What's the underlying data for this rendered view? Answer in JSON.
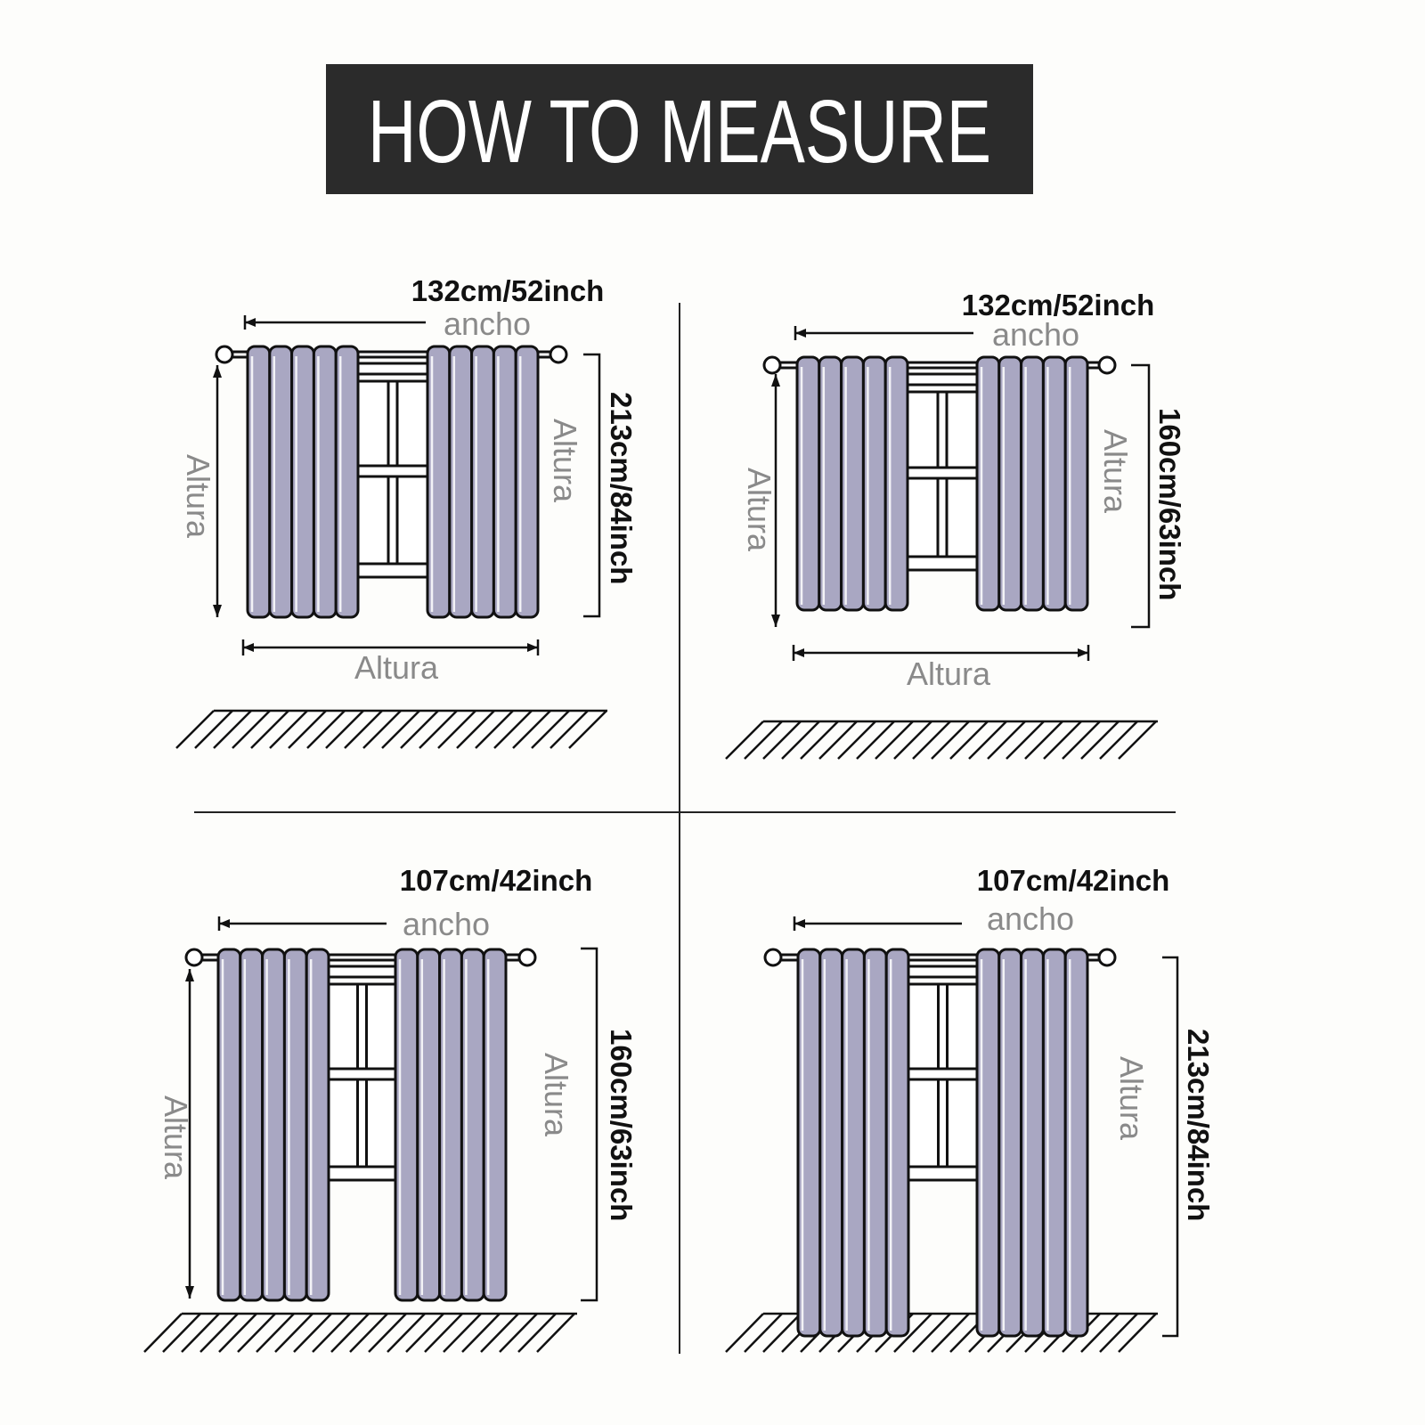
{
  "title": "HOW TO MEASURE",
  "colors": {
    "title_bg": "#2b2b2b",
    "curtain": "#a9a7c2",
    "line": "#111111",
    "label": "#8a8a8a"
  },
  "panels": [
    {
      "width_label": "132cm/52inch",
      "ancho": "ancho",
      "height_label": "213cm/84inch",
      "left_label": "Altura",
      "right_label": "Altura",
      "bottom_label": "Altura"
    },
    {
      "width_label": "132cm/52inch",
      "ancho": "ancho",
      "height_label": "160cm/63inch",
      "left_label": "Altura",
      "right_label": "Altura",
      "bottom_label": "Altura"
    },
    {
      "width_label": "107cm/42inch",
      "ancho": "ancho",
      "height_label": "160cm/63inch",
      "left_label": "Altura",
      "right_label": "Altura"
    },
    {
      "width_label": "107cm/42inch",
      "ancho": "ancho",
      "height_label": "213cm/84inch",
      "right_label": "Altura"
    }
  ]
}
